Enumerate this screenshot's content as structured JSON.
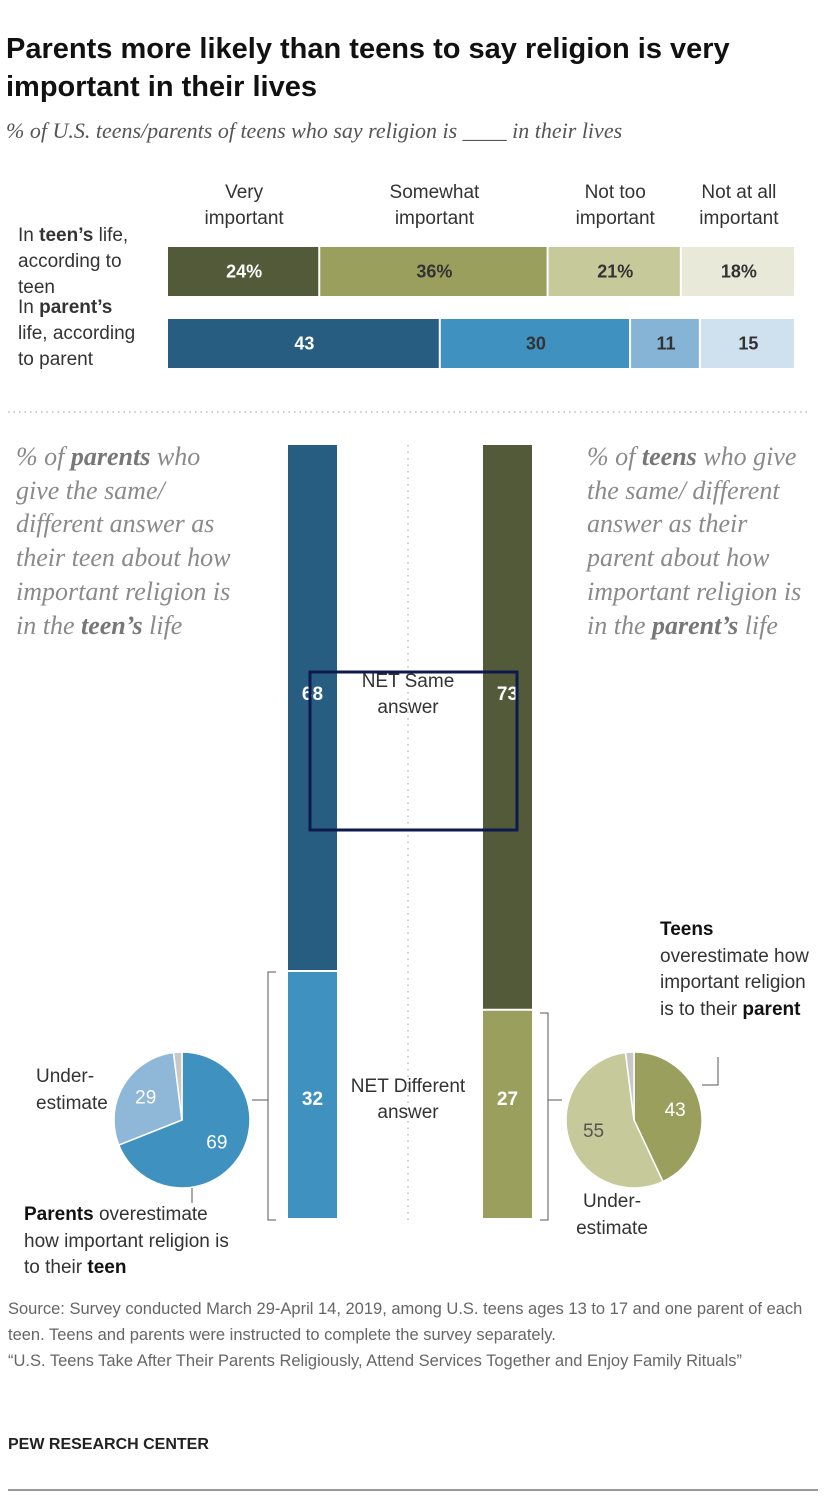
{
  "title": "Parents more likely than teens to say religion is very important in their lives",
  "subtitle": "% of U.S. teens/parents of teens who say religion is ____ in their lives",
  "chart_data": [
    {
      "type": "stacked-bar",
      "categories": [
        [
          {
            "text": "In "
          },
          {
            "text": "teen’s",
            "bold": true
          },
          {
            "text": " life, according to teen"
          }
        ],
        [
          {
            "text": "In "
          },
          {
            "text": "parent’s",
            "bold": true
          },
          {
            "text": " life, according to parent"
          }
        ]
      ],
      "series": [
        {
          "name": "Very important",
          "values": [
            24,
            43
          ],
          "value_labels": [
            "24%",
            "43"
          ],
          "colors": [
            "#535a3a",
            "#265d80"
          ],
          "label_colors": [
            "#ffffff",
            "#ffffff"
          ]
        },
        {
          "name": "Somewhat important",
          "values": [
            36,
            30
          ],
          "value_labels": [
            "36%",
            "30"
          ],
          "colors": [
            "#9a9f5e",
            "#3f92bf"
          ],
          "label_colors": [
            "#333333",
            "#333333"
          ]
        },
        {
          "name": "Not too important",
          "values": [
            21,
            11
          ],
          "value_labels": [
            "21%",
            "11"
          ],
          "colors": [
            "#c6c99a",
            "#86b4d6"
          ],
          "label_colors": [
            "#333333",
            "#333333"
          ]
        },
        {
          "name": "Not at all important",
          "values": [
            18,
            15
          ],
          "value_labels": [
            "18%",
            "15"
          ],
          "colors": [
            "#e9e9da",
            "#cfe1ee"
          ],
          "label_colors": [
            "#333333",
            "#333333"
          ]
        }
      ]
    },
    {
      "type": "column-stack",
      "categories": [
        "NET Same answer",
        "NET Different answer"
      ],
      "bars": [
        {
          "values": [
            68,
            32
          ],
          "colors": [
            "#265d80",
            "#3f92bf"
          ]
        },
        {
          "values": [
            73,
            27
          ],
          "colors": [
            "#535a3a",
            "#9a9f5e"
          ]
        }
      ]
    },
    {
      "type": "pie",
      "values": [
        69,
        29,
        2
      ],
      "colors": [
        "#3f92bf",
        "#8fb8d8",
        "#c8c8c8"
      ],
      "label_colors": [
        "#ffffff",
        "#ffffff",
        "#ffffff"
      ]
    },
    {
      "type": "pie",
      "values": [
        43,
        55,
        2
      ],
      "colors": [
        "#9a9f5e",
        "#c6c99a",
        "#c8c8c8"
      ],
      "label_colors": [
        "#ffffff",
        "#555555",
        "#555555"
      ]
    }
  ],
  "notes": {
    "left": [
      {
        "text": "% of "
      },
      {
        "text": "parents",
        "bold": true
      },
      {
        "text": " who give the same/ different answer as their teen about how important religion is in the "
      },
      {
        "text": "teen’s",
        "bold": true
      },
      {
        "text": " life"
      }
    ],
    "right": [
      {
        "text": "% of "
      },
      {
        "text": "teens",
        "bold": true
      },
      {
        "text": " who give the same/ different answer as their parent about how important religion is in the "
      },
      {
        "text": "parent’s",
        "bold": true
      },
      {
        "text": " life"
      }
    ]
  },
  "annotations": {
    "left_under": "Under-estimate",
    "left_over": [
      {
        "text": "Parents",
        "bold": true
      },
      {
        "text": " overestimate how important religion is to their "
      },
      {
        "text": "teen",
        "bold": true
      }
    ],
    "right_over": [
      {
        "text": "Teens",
        "bold": true
      },
      {
        "text": " overestimate how important religion is to their "
      },
      {
        "text": "parent",
        "bold": true
      }
    ],
    "right_under": "Under-estimate"
  },
  "source": [
    "Source: Survey conducted March 29-April 14, 2019, among U.S. teens ages 13 to 17 and one parent of each teen. Teens and parents were instructed to complete the survey separately.",
    "“U.S. Teens Take After Their Parents Religiously, Attend Services Together and Enjoy Family Rituals”"
  ],
  "publisher": "PEW RESEARCH CENTER"
}
